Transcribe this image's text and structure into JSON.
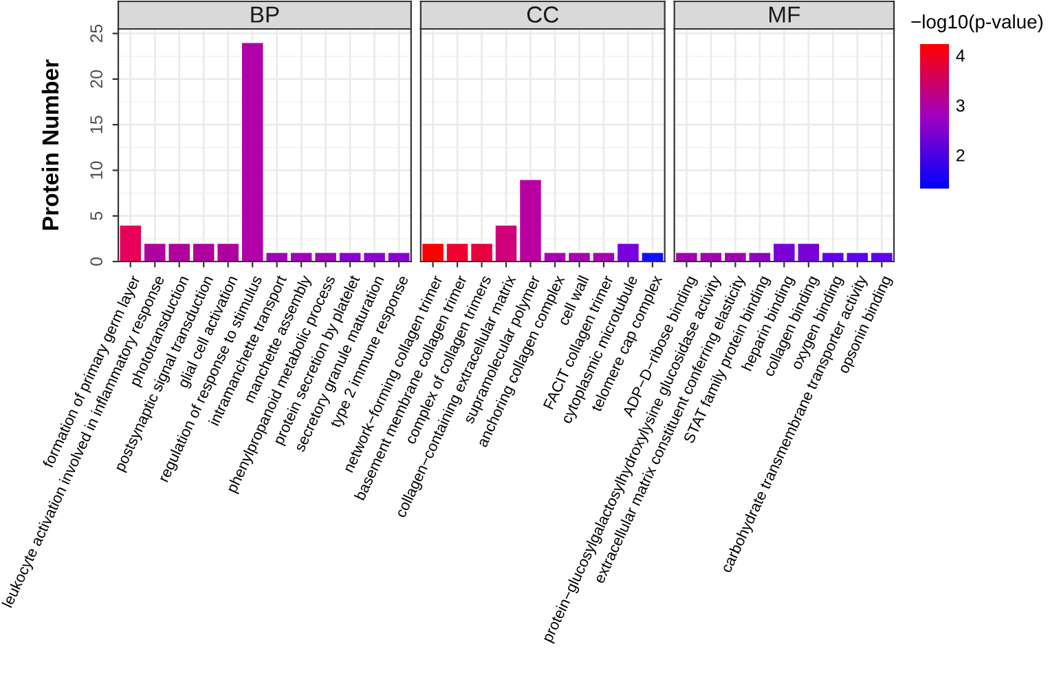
{
  "chart_data": [
    {
      "type": "bar",
      "title": "BP",
      "ylabel": "Protein Number",
      "categories": [
        "formation of primary germ layer",
        "leukocyte activation involved in inflammatory response",
        "phototransduction",
        "postsynaptic signal transduction",
        "glial cell activation",
        "regulation of response to stimulus",
        "intramanchette transport",
        "manchette assembly",
        "phenylpropanoid metabolic process",
        "protein secretion by platelet",
        "secretory granule maturation",
        "type 2 immune response"
      ],
      "values": [
        4,
        2,
        2,
        2,
        2,
        24,
        1,
        1,
        1,
        1,
        1,
        1
      ],
      "colors": [
        "#e8005a",
        "#b0009e",
        "#b0009e",
        "#b0009e",
        "#b0009e",
        "#b000a8",
        "#a000b8",
        "#a000b8",
        "#a000b8",
        "#8a00d0",
        "#8a00d0",
        "#8a00d0"
      ],
      "ylim": [
        0,
        25.5
      ],
      "yticks": [
        0,
        5,
        10,
        15,
        20,
        25
      ],
      "grid": true
    },
    {
      "type": "bar",
      "title": "CC",
      "categories": [
        "network−forming collagen trimer",
        "basement membrane collagen trimer",
        "complex of collagen trimers",
        "collagen−containing extracellular matrix",
        "supramolecular polymer",
        "anchoring collagen complex",
        "cell wall",
        "FACIT collagen trimer",
        "cytoplasmic microtubule",
        "telomere cap complex"
      ],
      "values": [
        2,
        2,
        2,
        4,
        9,
        1,
        1,
        1,
        2,
        1
      ],
      "colors": [
        "#ff0000",
        "#f00030",
        "#e80040",
        "#d0007a",
        "#b800a0",
        "#a800b0",
        "#a800b0",
        "#a800b0",
        "#7a00e0",
        "#1010ff"
      ],
      "ylim": [
        0,
        25.5
      ],
      "yticks": [
        0,
        5,
        10,
        15,
        20,
        25
      ],
      "grid": true,
      "tick_labels": "x"
    },
    {
      "type": "bar",
      "title": "MF",
      "categories": [
        "ADP−D−ribose binding",
        "protein−glucosylgalactosylhydroxylysine glucosidase activity",
        "extracellular matrix constituent conferring elasticity",
        "STAT family protein binding",
        "heparin binding",
        "collagen binding",
        "oxygen binding",
        "carbohydrate transmembrane transporter activity",
        "opsonin binding"
      ],
      "values": [
        1,
        1,
        1,
        1,
        2,
        2,
        1,
        1,
        1
      ],
      "colors": [
        "#a000b0",
        "#a000b0",
        "#a000b0",
        "#9000c0",
        "#7800d8",
        "#7800d8",
        "#6000f0",
        "#6000f0",
        "#6000f0"
      ],
      "ylim": [
        0,
        25.5
      ],
      "yticks": [
        0,
        5,
        10,
        15,
        20,
        25
      ],
      "grid": true,
      "tick_labels": "x",
      "clabel": "−log10(p-value)",
      "clim": [
        1.3,
        4.2
      ],
      "cticks": [
        2,
        3,
        4
      ]
    }
  ]
}
